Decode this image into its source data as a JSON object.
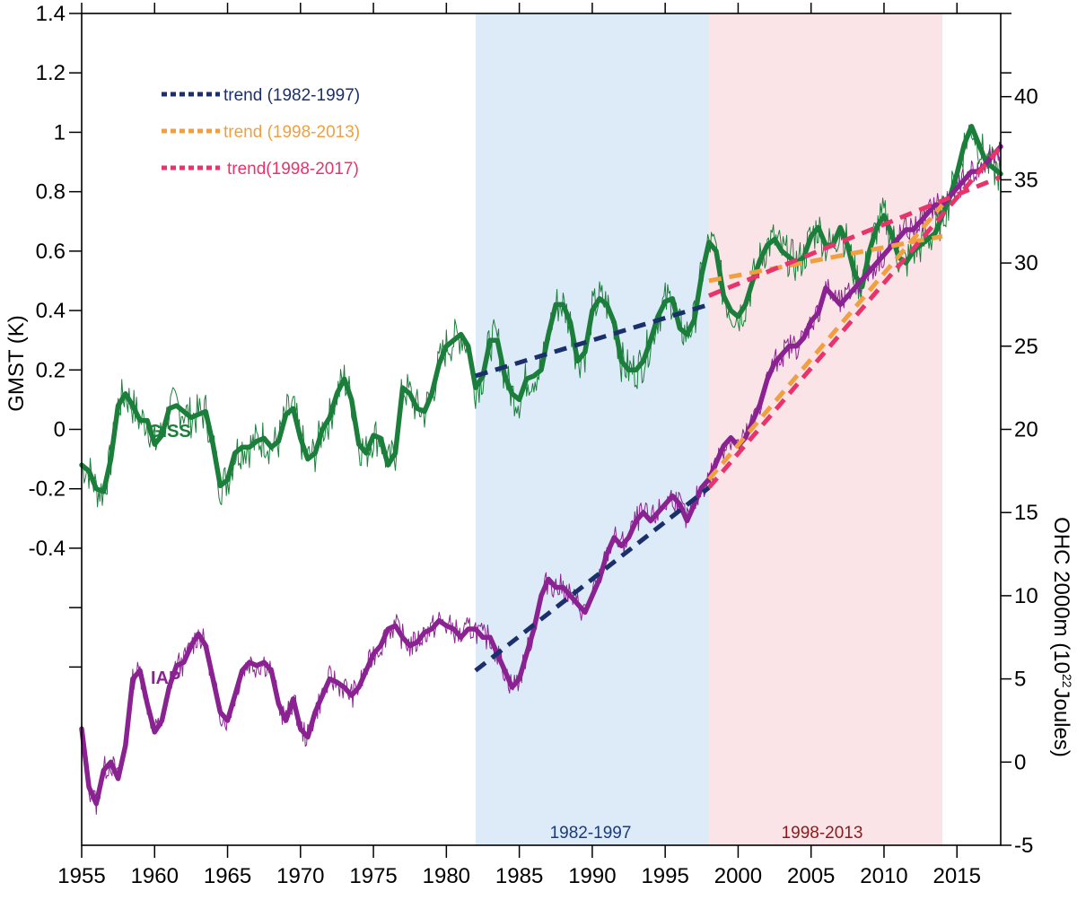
{
  "chart_data": {
    "type": "line",
    "xlabel": "",
    "ylabel_left": "GMST (K)",
    "ylabel_right_main": "OHC 2000m (10",
    "ylabel_right_sup": "22",
    "ylabel_right_end": "Joules)",
    "xlim": [
      1955,
      2018
    ],
    "ylim_left": [
      -1.4,
      1.4
    ],
    "ylim_right": [
      -5,
      45
    ],
    "x_ticks": [
      "1955",
      "1960",
      "1965",
      "1970",
      "1975",
      "1980",
      "1985",
      "1990",
      "1995",
      "2000",
      "2005",
      "2010",
      "2015"
    ],
    "y_left_ticks": [
      "-0.4",
      "-0.2",
      "0",
      "0.2",
      "0.4",
      "0.6",
      "0.8",
      "1",
      "1.2",
      "1.4"
    ],
    "y_right_ticks": [
      "-5",
      "0",
      "5",
      "10",
      "15",
      "20",
      "25",
      "30",
      "35",
      "40"
    ],
    "shaded_periods": [
      {
        "label": "1982-1997",
        "start": 1982,
        "end": 1998,
        "color": "#ddebf8",
        "label_color": "#1a3a7a"
      },
      {
        "label": "1998-2013",
        "start": 1998,
        "end": 2014,
        "color": "#fbe4e8",
        "label_color": "#8b1a1a"
      }
    ],
    "legend": [
      {
        "label": "trend (1982-1997)",
        "color": "#1b2f6b"
      },
      {
        "label": "trend (1998-2013)",
        "color": "#f0a040"
      },
      {
        "label": "trend(1998-2017)",
        "color": "#e8336b"
      }
    ],
    "series": [
      {
        "name": "GISS",
        "axis": "left",
        "color": "#1b7f3b",
        "points": [
          [
            1955.0,
            -0.12
          ],
          [
            1955.5,
            -0.14
          ],
          [
            1956.0,
            -0.2
          ],
          [
            1956.5,
            -0.21
          ],
          [
            1957.0,
            -0.1
          ],
          [
            1957.5,
            0.08
          ],
          [
            1958.0,
            0.12
          ],
          [
            1958.5,
            0.08
          ],
          [
            1959.0,
            0.03
          ],
          [
            1959.5,
            0.03
          ],
          [
            1960.0,
            -0.05
          ],
          [
            1960.5,
            -0.02
          ],
          [
            1961.0,
            0.07
          ],
          [
            1961.5,
            0.08
          ],
          [
            1962.0,
            0.06
          ],
          [
            1962.5,
            0.04
          ],
          [
            1963.0,
            0.05
          ],
          [
            1963.5,
            0.06
          ],
          [
            1964.0,
            -0.05
          ],
          [
            1964.5,
            -0.19
          ],
          [
            1965.0,
            -0.17
          ],
          [
            1965.5,
            -0.08
          ],
          [
            1966.0,
            -0.06
          ],
          [
            1966.5,
            -0.06
          ],
          [
            1967.0,
            -0.04
          ],
          [
            1967.5,
            -0.03
          ],
          [
            1968.0,
            -0.06
          ],
          [
            1968.5,
            -0.04
          ],
          [
            1969.0,
            0.05
          ],
          [
            1969.5,
            0.07
          ],
          [
            1970.0,
            -0.03
          ],
          [
            1970.5,
            -0.1
          ],
          [
            1971.0,
            -0.08
          ],
          [
            1971.5,
            0.0
          ],
          [
            1972.0,
            0.04
          ],
          [
            1972.5,
            0.12
          ],
          [
            1973.0,
            0.17
          ],
          [
            1973.5,
            0.1
          ],
          [
            1974.0,
            -0.05
          ],
          [
            1974.5,
            -0.08
          ],
          [
            1975.0,
            -0.02
          ],
          [
            1975.5,
            -0.03
          ],
          [
            1976.0,
            -0.12
          ],
          [
            1976.5,
            -0.08
          ],
          [
            1977.0,
            0.14
          ],
          [
            1977.5,
            0.12
          ],
          [
            1978.0,
            0.07
          ],
          [
            1978.5,
            0.06
          ],
          [
            1979.0,
            0.12
          ],
          [
            1979.5,
            0.22
          ],
          [
            1980.0,
            0.28
          ],
          [
            1980.5,
            0.3
          ],
          [
            1981.0,
            0.32
          ],
          [
            1981.5,
            0.28
          ],
          [
            1982.0,
            0.14
          ],
          [
            1982.5,
            0.18
          ],
          [
            1983.0,
            0.3
          ],
          [
            1983.5,
            0.3
          ],
          [
            1984.0,
            0.18
          ],
          [
            1984.5,
            0.12
          ],
          [
            1985.0,
            0.1
          ],
          [
            1985.5,
            0.17
          ],
          [
            1986.0,
            0.18
          ],
          [
            1986.5,
            0.2
          ],
          [
            1987.0,
            0.32
          ],
          [
            1987.5,
            0.42
          ],
          [
            1988.0,
            0.42
          ],
          [
            1988.5,
            0.36
          ],
          [
            1989.0,
            0.23
          ],
          [
            1989.5,
            0.26
          ],
          [
            1990.0,
            0.4
          ],
          [
            1990.5,
            0.44
          ],
          [
            1991.0,
            0.42
          ],
          [
            1991.5,
            0.36
          ],
          [
            1992.0,
            0.23
          ],
          [
            1992.5,
            0.2
          ],
          [
            1993.0,
            0.2
          ],
          [
            1993.5,
            0.23
          ],
          [
            1994.0,
            0.3
          ],
          [
            1994.5,
            0.38
          ],
          [
            1995.0,
            0.43
          ],
          [
            1995.5,
            0.44
          ],
          [
            1996.0,
            0.34
          ],
          [
            1996.5,
            0.32
          ],
          [
            1997.0,
            0.37
          ],
          [
            1997.5,
            0.52
          ],
          [
            1998.0,
            0.63
          ],
          [
            1998.5,
            0.6
          ],
          [
            1999.0,
            0.45
          ],
          [
            1999.5,
            0.4
          ],
          [
            2000.0,
            0.38
          ],
          [
            2000.5,
            0.42
          ],
          [
            2001.0,
            0.5
          ],
          [
            2001.5,
            0.57
          ],
          [
            2002.0,
            0.62
          ],
          [
            2002.5,
            0.64
          ],
          [
            2003.0,
            0.6
          ],
          [
            2003.5,
            0.58
          ],
          [
            2004.0,
            0.56
          ],
          [
            2004.5,
            0.58
          ],
          [
            2005.0,
            0.65
          ],
          [
            2005.5,
            0.68
          ],
          [
            2006.0,
            0.62
          ],
          [
            2006.5,
            0.62
          ],
          [
            2007.0,
            0.68
          ],
          [
            2007.5,
            0.62
          ],
          [
            2008.0,
            0.52
          ],
          [
            2008.5,
            0.48
          ],
          [
            2009.0,
            0.6
          ],
          [
            2009.5,
            0.68
          ],
          [
            2010.0,
            0.72
          ],
          [
            2010.5,
            0.66
          ],
          [
            2011.0,
            0.58
          ],
          [
            2011.5,
            0.56
          ],
          [
            2012.0,
            0.6
          ],
          [
            2012.5,
            0.62
          ],
          [
            2013.0,
            0.64
          ],
          [
            2013.5,
            0.66
          ],
          [
            2014.0,
            0.72
          ],
          [
            2014.5,
            0.78
          ],
          [
            2015.0,
            0.86
          ],
          [
            2015.5,
            0.96
          ],
          [
            2016.0,
            1.02
          ],
          [
            2016.5,
            0.96
          ],
          [
            2017.0,
            0.9
          ],
          [
            2017.5,
            0.88
          ],
          [
            2018.0,
            0.86
          ]
        ]
      },
      {
        "name": "IAP",
        "axis": "right",
        "color": "#8b2291",
        "points": [
          [
            1955.0,
            2.0
          ],
          [
            1955.5,
            -1.5
          ],
          [
            1956.0,
            -2.5
          ],
          [
            1956.5,
            -0.5
          ],
          [
            1957.0,
            0.0
          ],
          [
            1957.5,
            -1.0
          ],
          [
            1958.0,
            1.0
          ],
          [
            1958.5,
            5.0
          ],
          [
            1959.0,
            5.5
          ],
          [
            1959.5,
            3.5
          ],
          [
            1960.0,
            1.8
          ],
          [
            1960.5,
            2.5
          ],
          [
            1961.0,
            4.5
          ],
          [
            1961.5,
            5.8
          ],
          [
            1962.0,
            6.0
          ],
          [
            1962.5,
            7.0
          ],
          [
            1963.0,
            7.7
          ],
          [
            1963.5,
            7.0
          ],
          [
            1964.0,
            5.0
          ],
          [
            1964.5,
            3.0
          ],
          [
            1965.0,
            2.5
          ],
          [
            1965.5,
            4.0
          ],
          [
            1966.0,
            5.5
          ],
          [
            1966.5,
            6.0
          ],
          [
            1967.0,
            5.8
          ],
          [
            1967.5,
            6.0
          ],
          [
            1968.0,
            5.5
          ],
          [
            1968.5,
            3.5
          ],
          [
            1969.0,
            2.5
          ],
          [
            1969.5,
            3.8
          ],
          [
            1970.0,
            2.0
          ],
          [
            1970.5,
            1.5
          ],
          [
            1971.0,
            3.0
          ],
          [
            1971.5,
            4.0
          ],
          [
            1972.0,
            5.0
          ],
          [
            1972.5,
            4.8
          ],
          [
            1973.0,
            4.5
          ],
          [
            1973.5,
            4.0
          ],
          [
            1974.0,
            4.5
          ],
          [
            1974.5,
            5.5
          ],
          [
            1975.0,
            6.5
          ],
          [
            1975.5,
            7.0
          ],
          [
            1976.0,
            8.0
          ],
          [
            1976.5,
            8.2
          ],
          [
            1977.0,
            7.5
          ],
          [
            1977.5,
            7.0
          ],
          [
            1978.0,
            7.2
          ],
          [
            1978.5,
            7.8
          ],
          [
            1979.0,
            8.0
          ],
          [
            1979.5,
            8.5
          ],
          [
            1980.0,
            8.2
          ],
          [
            1980.5,
            8.0
          ],
          [
            1981.0,
            7.5
          ],
          [
            1981.5,
            8.0
          ],
          [
            1982.0,
            8.0
          ],
          [
            1982.5,
            7.5
          ],
          [
            1983.0,
            7.5
          ],
          [
            1983.5,
            6.5
          ],
          [
            1984.0,
            5.5
          ],
          [
            1984.5,
            4.5
          ],
          [
            1985.0,
            5.0
          ],
          [
            1985.5,
            6.5
          ],
          [
            1986.0,
            8.0
          ],
          [
            1986.5,
            10.0
          ],
          [
            1987.0,
            11.0
          ],
          [
            1987.5,
            10.5
          ],
          [
            1988.0,
            10.5
          ],
          [
            1988.5,
            10.0
          ],
          [
            1989.0,
            9.5
          ],
          [
            1989.5,
            9.0
          ],
          [
            1990.0,
            10.0
          ],
          [
            1990.5,
            11.0
          ],
          [
            1991.0,
            12.5
          ],
          [
            1991.5,
            13.5
          ],
          [
            1992.0,
            13.0
          ],
          [
            1992.5,
            13.5
          ],
          [
            1993.0,
            14.5
          ],
          [
            1993.5,
            15.0
          ],
          [
            1994.0,
            14.5
          ],
          [
            1994.5,
            15.0
          ],
          [
            1995.0,
            15.5
          ],
          [
            1995.5,
            16.0
          ],
          [
            1996.0,
            15.5
          ],
          [
            1996.5,
            14.5
          ],
          [
            1997.0,
            15.5
          ],
          [
            1997.5,
            16.5
          ],
          [
            1998.0,
            17.0
          ],
          [
            1998.5,
            18.0
          ],
          [
            1999.0,
            19.0
          ],
          [
            1999.5,
            19.5
          ],
          [
            2000.0,
            19.0
          ],
          [
            2000.5,
            19.5
          ],
          [
            2001.0,
            20.5
          ],
          [
            2001.5,
            21.5
          ],
          [
            2002.0,
            23.0
          ],
          [
            2002.5,
            24.0
          ],
          [
            2003.0,
            24.5
          ],
          [
            2003.5,
            25.0
          ],
          [
            2004.0,
            25.0
          ],
          [
            2004.5,
            25.5
          ],
          [
            2005.0,
            26.5
          ],
          [
            2005.5,
            27.0
          ],
          [
            2006.0,
            28.5
          ],
          [
            2006.5,
            28.0
          ],
          [
            2007.0,
            27.5
          ],
          [
            2007.5,
            28.0
          ],
          [
            2008.0,
            28.5
          ],
          [
            2008.5,
            29.0
          ],
          [
            2009.0,
            29.5
          ],
          [
            2009.5,
            30.0
          ],
          [
            2010.0,
            30.5
          ],
          [
            2010.5,
            31.0
          ],
          [
            2011.0,
            31.5
          ],
          [
            2011.5,
            32.0
          ],
          [
            2012.0,
            32.0
          ],
          [
            2012.5,
            32.5
          ],
          [
            2013.0,
            33.0
          ],
          [
            2013.5,
            33.5
          ],
          [
            2014.0,
            33.5
          ],
          [
            2014.5,
            34.0
          ],
          [
            2015.0,
            34.5
          ],
          [
            2015.5,
            35.0
          ],
          [
            2016.0,
            35.5
          ],
          [
            2016.5,
            35.5
          ],
          [
            2017.0,
            36.0
          ],
          [
            2017.5,
            36.5
          ],
          [
            2018.0,
            37.0
          ]
        ]
      }
    ],
    "trends": [
      {
        "series": "GISS",
        "period": "1982-1997",
        "axis": "left",
        "x": [
          1982,
          1998
        ],
        "y": [
          0.18,
          0.42
        ],
        "color": "#1b2f6b"
      },
      {
        "series": "GISS",
        "period": "1998-2013",
        "axis": "left",
        "x": [
          1998,
          2014
        ],
        "y": [
          0.5,
          0.65
        ],
        "color": "#f0a040"
      },
      {
        "series": "GISS",
        "period": "1998-2017",
        "axis": "left",
        "x": [
          1998,
          2018
        ],
        "y": [
          0.45,
          0.85
        ],
        "color": "#e8336b"
      },
      {
        "series": "IAP",
        "period": "1982-1997",
        "axis": "right",
        "x": [
          1982,
          1998
        ],
        "y": [
          5.5,
          16.5
        ],
        "color": "#1b2f6b"
      },
      {
        "series": "IAP",
        "period": "1998-2013",
        "axis": "right",
        "x": [
          1998,
          2014
        ],
        "y": [
          17.0,
          33.5
        ],
        "color": "#f0a040"
      },
      {
        "series": "IAP",
        "period": "1998-2017",
        "axis": "right",
        "x": [
          1998,
          2018
        ],
        "y": [
          16.5,
          37.0
        ],
        "color": "#e8336b"
      }
    ]
  }
}
